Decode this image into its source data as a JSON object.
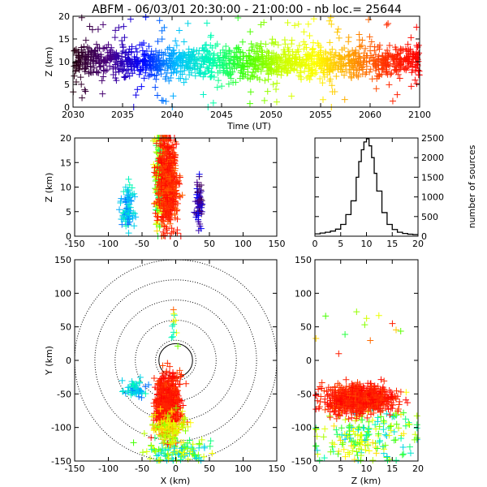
{
  "title": "ABFM - 06/03/01 20:30:00 - 21:00:00 - nb loc.=  25644",
  "chart_data": [
    {
      "id": "time_height",
      "type": "scatter",
      "xlabel": "Time (UT)",
      "ylabel": "Z (km)",
      "xlim": [
        2030,
        2100
      ],
      "ylim": [
        0,
        20
      ],
      "xticks": [
        "2030",
        "2035",
        "2040",
        "2045",
        "2050",
        "2055",
        "2060",
        "2100"
      ],
      "yticks": [
        "0",
        "5",
        "10",
        "15",
        "20"
      ],
      "color_encoding": "time (violet at 2030 to red at 2100)",
      "description_points": {
        "bulk_z_range": [
          6,
          14
        ],
        "scatter_z_range": [
          0,
          20
        ]
      }
    },
    {
      "id": "x_height",
      "type": "scatter",
      "xlabel": "",
      "ylabel": "Z (km)",
      "xlim": [
        -150,
        150
      ],
      "ylim": [
        0,
        20
      ],
      "xticks": [
        "-150",
        "-100",
        "-50",
        "0",
        "50",
        "100",
        "150"
      ],
      "yticks": [
        "0",
        "5",
        "10",
        "15",
        "20"
      ],
      "clusters": [
        {
          "x_range": [
            -40,
            10
          ],
          "z_range": [
            0,
            20
          ],
          "dominant_color": "red"
        },
        {
          "x_range": [
            -80,
            -58
          ],
          "z_range": [
            2,
            10
          ],
          "dominant_color": "cyan"
        },
        {
          "x_range": [
            28,
            40
          ],
          "z_range": [
            2,
            10
          ],
          "dominant_color": "blue"
        }
      ]
    },
    {
      "id": "height_histogram",
      "type": "line",
      "xlabel": "",
      "ylabel": "number of sources",
      "xlim": [
        0,
        20
      ],
      "ylim": [
        0,
        2500
      ],
      "xticks": [
        "0",
        "5",
        "10",
        "15",
        "20"
      ],
      "yticks": [
        "0",
        "500",
        "1000",
        "1500",
        "2000",
        "2500"
      ],
      "x": [
        0,
        1,
        2,
        3,
        4,
        5,
        6,
        7,
        8,
        8.5,
        9,
        9.5,
        10,
        10.5,
        11,
        11.5,
        12,
        13,
        14,
        15,
        16,
        17,
        18,
        19,
        20
      ],
      "values": [
        60,
        80,
        100,
        130,
        180,
        300,
        550,
        900,
        1500,
        1900,
        2200,
        2400,
        2480,
        2300,
        2000,
        1600,
        1150,
        600,
        300,
        170,
        100,
        70,
        50,
        40,
        40
      ]
    },
    {
      "id": "plan_view",
      "type": "scatter",
      "xlabel": "X (km)",
      "ylabel": "Y (km)",
      "xlim": [
        -150,
        150
      ],
      "ylim": [
        -150,
        150
      ],
      "xticks": [
        "-150",
        "-100",
        "-50",
        "0",
        "50",
        "100",
        "150"
      ],
      "yticks": [
        "-150",
        "-100",
        "-50",
        "0",
        "50",
        "100",
        "150"
      ],
      "range_rings_km": [
        30,
        60,
        90,
        120,
        150
      ],
      "clusters": [
        {
          "x_range": [
            -35,
            15
          ],
          "y_range": [
            -115,
            -15
          ],
          "dominant_color": "red"
        },
        {
          "x_range": [
            -75,
            -45
          ],
          "y_range": [
            -55,
            -30
          ],
          "dominant_color": "cyan"
        },
        {
          "x_range": [
            -40,
            50
          ],
          "y_range": [
            -150,
            -100
          ],
          "dominant_color": "green/blue"
        },
        {
          "x_range": [
            -10,
            5
          ],
          "y_range": [
            20,
            90
          ],
          "dominant_color": "mixed"
        }
      ]
    },
    {
      "id": "height_y",
      "type": "scatter",
      "xlabel": "Z (km)",
      "ylabel": "",
      "xlim": [
        0,
        20
      ],
      "ylim": [
        -150,
        150
      ],
      "xticks": [
        "0",
        "5",
        "10",
        "15",
        "20"
      ],
      "yticks": [
        "-150",
        "-100",
        "-50",
        "0",
        "50",
        "100",
        "150"
      ],
      "clusters": [
        {
          "z_range": [
            2,
            16
          ],
          "y_range": [
            -85,
            -30
          ],
          "dominant_color": "red"
        },
        {
          "z_range": [
            2,
            20
          ],
          "y_range": [
            -150,
            -80
          ],
          "dominant_color": "green/blue"
        },
        {
          "z_range": [
            1,
            17
          ],
          "y_range": [
            25,
            90
          ],
          "dominant_color": "mixed"
        }
      ]
    }
  ],
  "palette": {
    "axis": "#000000",
    "background": "#ffffff",
    "rainbow": [
      "#2a0010",
      "#4b0082",
      "#0000ff",
      "#00bfff",
      "#00ffb0",
      "#40ff00",
      "#c8ff00",
      "#ffff00",
      "#ffa000",
      "#ff3000",
      "#ff0000"
    ]
  }
}
